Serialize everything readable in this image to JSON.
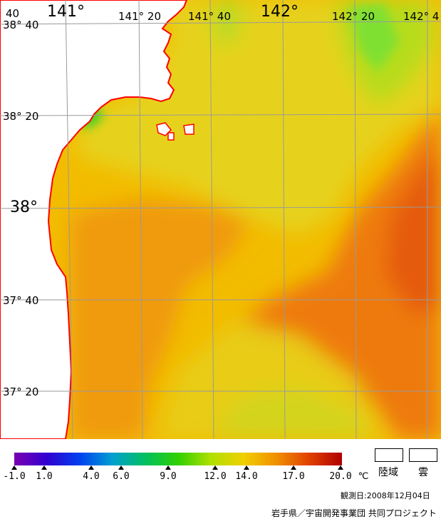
{
  "map": {
    "lon_labels": {
      "l140_40": "40",
      "l141": "141°",
      "l141_20": "141° 20",
      "l141_40": "141° 40",
      "l142": "142°",
      "l142_20": "142° 20",
      "l142_40": "142° 4"
    },
    "lat_labels": {
      "l38_40": "38° 40",
      "l38_20": "38° 20",
      "l38": "38°",
      "l37_40": "37° 40",
      "l37_20": "37° 20"
    },
    "colors": {
      "land": "#ffffff",
      "coastline": "#ff0000",
      "grid": "#9a9a9a",
      "sea_base": "#f0b800"
    }
  },
  "color_scale": {
    "ticks": [
      "-1.0",
      "1.0",
      "4.0",
      "6.0",
      "9.0",
      "12.0",
      "14.0",
      "17.0",
      "20.0"
    ],
    "unit": "℃",
    "stops": [
      "#7a00b0",
      "#3000d0",
      "#0040f0",
      "#00a0d0",
      "#00c060",
      "#30d000",
      "#b0e000",
      "#f0d000",
      "#f09000",
      "#e04000",
      "#b00000"
    ]
  },
  "legend": {
    "land_label": "陸域",
    "cloud_label": "雲"
  },
  "observation_date": "観測日:2008年12月04日",
  "credit": "岩手県／宇宙開発事業団 共同プロジェクト"
}
